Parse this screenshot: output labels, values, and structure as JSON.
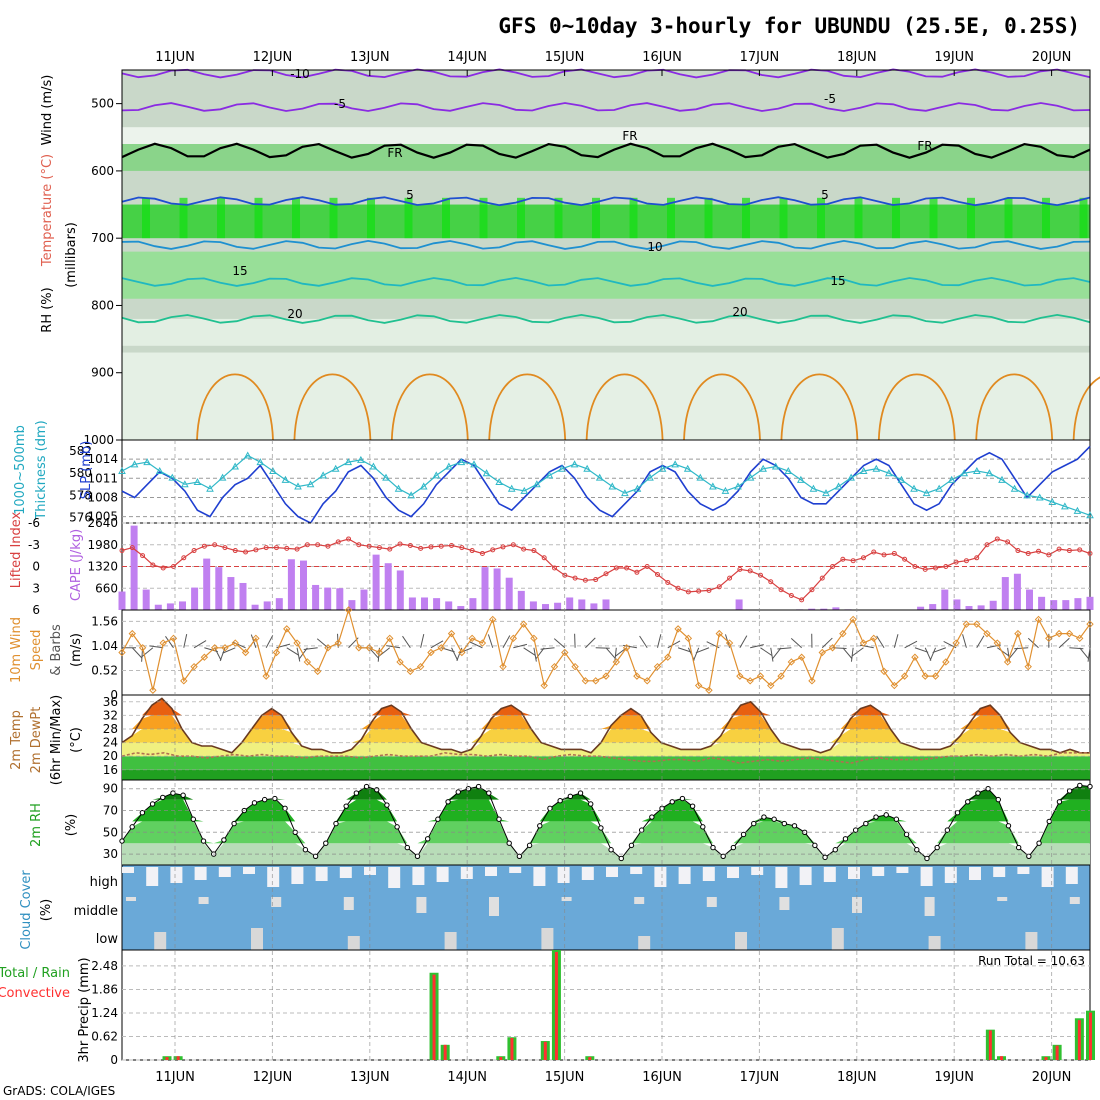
{
  "title": "GFS 0~10day 3-hourly for UBUNDU (25.5E, 0.25S)",
  "credit": "GrADS: COLA/IGES",
  "days": [
    "11JUN",
    "12JUN",
    "13JUN",
    "14JUN",
    "15JUN",
    "16JUN",
    "17JUN",
    "18JUN",
    "19JUN",
    "20JUN"
  ],
  "colors": {
    "humid": "#7ed67e",
    "cape": "#c080f0",
    "rain": "#ff3030",
    "total": "#30c030",
    "cloud": "#6aa9d8",
    "slp": "#1f3fd0",
    "thick": "#30b8c8",
    "li": "#d84040",
    "wind": "#e09030",
    "temp": "#b07050"
  },
  "panel_labels": {
    "upper": [
      "RH (%)",
      "Temperature (°C)",
      "Wind (m/s)",
      "(millibars)"
    ],
    "slp": [
      "1000~500mb",
      "Thickness (dm)",
      "SLP (mb)"
    ],
    "cape": [
      "Lifted Index",
      "CAPE (J/kg)"
    ],
    "wind": [
      "10m Wind",
      "Speed",
      "& Barbs",
      "(m/s)"
    ],
    "temp": [
      "2m Temp",
      "2m DewPt",
      "(6hr Min/Max)",
      "(°C)"
    ],
    "rh": [
      "2m RH",
      "(%)"
    ],
    "cloud": [
      "Cloud Cover",
      "(%)",
      "high",
      "middle",
      "low"
    ],
    "precip": [
      "Total / Rain",
      "Convective",
      "3hr Precip (mm)"
    ]
  },
  "run_total_label": "Run Total = 10.63",
  "chart_data": [
    {
      "type": "heatmap",
      "name": "upper-air cross-section",
      "y_ticks": [
        500,
        600,
        700,
        800,
        900,
        1000
      ],
      "ylim": [
        1000,
        450
      ],
      "isotherm_labels": [
        "-10",
        "-5",
        "-5",
        "FR",
        "FR",
        "FR",
        "5",
        "5",
        "10",
        "15",
        "15",
        "20",
        "20"
      ],
      "isotherms": [
        {
          "label": "-10",
          "level": 455,
          "color": "#8a2be2"
        },
        {
          "label": "-5",
          "level": 505,
          "color": "#8a2be2"
        },
        {
          "label": "FR",
          "level": 570,
          "color": "#000000"
        },
        {
          "label": "5",
          "level": 645,
          "color": "#1f4fd0"
        },
        {
          "label": "10",
          "level": 710,
          "color": "#1e90d0"
        },
        {
          "label": "15",
          "level": 765,
          "color": "#20b8c0"
        },
        {
          "label": "20",
          "level": 820,
          "color": "#20c090"
        }
      ]
    },
    {
      "type": "line",
      "name": "thickness-slp",
      "y_left_ticks": [
        576,
        578,
        580,
        582
      ],
      "y_right_ticks": [
        1005,
        1008,
        1011,
        1014
      ],
      "ylim_left": [
        575.5,
        583
      ],
      "ylim_right": [
        1004,
        1017
      ],
      "series": [
        {
          "name": "SLP",
          "axis": "right",
          "values": [
            1009,
            1008,
            1010,
            1012,
            1011,
            1009,
            1006,
            1005,
            1008,
            1010,
            1011,
            1013,
            1010,
            1007,
            1005,
            1004,
            1007,
            1009,
            1012,
            1013,
            1011,
            1008,
            1006,
            1005,
            1007,
            1010,
            1012,
            1014,
            1013,
            1010,
            1007,
            1006,
            1008,
            1010,
            1012,
            1013,
            1011,
            1008,
            1006,
            1005,
            1007,
            1009,
            1012,
            1013,
            1012,
            1009,
            1007,
            1006,
            1007,
            1009,
            1012,
            1014,
            1013,
            1011,
            1008,
            1007,
            1007,
            1009,
            1011,
            1013,
            1014,
            1013,
            1010,
            1007,
            1006,
            1007,
            1010,
            1012,
            1014,
            1015,
            1014,
            1011,
            1008,
            1010,
            1012,
            1013,
            1014,
            1016
          ]
        },
        {
          "name": "Thickness",
          "axis": "left",
          "values": [
            580.2,
            580.8,
            581.0,
            580.2,
            579.6,
            579.0,
            579.2,
            578.6,
            579.6,
            580.6,
            581.6,
            581.0,
            580.2,
            579.4,
            578.8,
            579.0,
            579.8,
            580.4,
            581.0,
            581.2,
            580.6,
            579.6,
            578.6,
            578.0,
            578.8,
            579.8,
            580.6,
            581.0,
            580.8,
            580.0,
            579.2,
            578.6,
            578.4,
            579.0,
            579.8,
            580.4,
            580.8,
            580.4,
            579.6,
            578.8,
            578.2,
            578.6,
            579.6,
            580.4,
            580.8,
            580.4,
            579.6,
            578.8,
            578.4,
            578.8,
            579.6,
            580.4,
            580.6,
            580.2,
            579.4,
            578.6,
            578.2,
            578.8,
            579.6,
            580.2,
            580.4,
            580.0,
            579.4,
            578.6,
            578.2,
            578.6,
            579.4,
            580.0,
            580.2,
            580.0,
            579.4,
            578.6,
            578.0,
            577.8,
            577.4,
            577.0,
            576.6,
            576.2
          ]
        }
      ]
    },
    {
      "type": "bar",
      "name": "cape-lifted-index",
      "y_left_ticks": [
        6,
        3,
        0,
        -3,
        -6
      ],
      "y_right_ticks": [
        660,
        1320,
        1980,
        2640
      ],
      "ylim_right": [
        0,
        2640
      ],
      "series": [
        {
          "name": "CAPE",
          "values": [
            560,
            2560,
            620,
            160,
            200,
            260,
            680,
            1560,
            1300,
            1000,
            820,
            160,
            260,
            360,
            1540,
            1500,
            760,
            680,
            660,
            300,
            620,
            1680,
            1420,
            1200,
            380,
            380,
            360,
            260,
            120,
            360,
            1300,
            1260,
            980,
            580,
            260,
            180,
            220,
            380,
            320,
            200,
            320,
            0,
            0,
            0,
            0,
            0,
            0,
            0,
            0,
            0,
            0,
            320,
            0,
            0,
            0,
            0,
            20,
            40,
            40,
            80,
            20,
            0,
            0,
            0,
            0,
            0,
            100,
            180,
            620,
            320,
            120,
            140,
            280,
            1000,
            1100,
            620,
            400,
            300,
            300,
            360,
            400
          ]
        },
        {
          "name": "Lifted Index",
          "values": [
            -2.2,
            -2.6,
            -1.5,
            -0.2,
            0.2,
            0.0,
            -1.2,
            -2.2,
            -2.8,
            -3.0,
            -2.6,
            -2.2,
            -2.0,
            -2.3,
            -2.6,
            -2.6,
            -2.5,
            -2.4,
            -3.0,
            -3.0,
            -2.8,
            -3.4,
            -3.8,
            -3.0,
            -2.8,
            -2.6,
            -2.4,
            -3.1,
            -2.9,
            -2.5,
            -2.7,
            -2.8,
            -2.9,
            -2.6,
            -2.2,
            -1.8,
            -2.3,
            -2.7,
            -3.0,
            -2.4,
            -2.2,
            -1.2,
            0.2,
            1.2,
            1.6,
            1.9,
            1.8,
            1.0,
            0.2,
            0.2,
            0.8,
            0.0,
            1.1,
            2.2,
            3.0,
            3.5,
            3.4,
            3.3,
            2.8,
            1.6,
            0.4,
            0.6,
            1.2,
            2.1,
            3.2,
            4.0,
            4.6,
            3.2,
            1.6,
            0.0,
            -1.0,
            -0.8,
            -1.2,
            -2.0,
            -1.6,
            -1.8,
            -1.0,
            0.0,
            0.4,
            0.2,
            0.0,
            -0.6,
            -0.8,
            -1.2,
            -3.0,
            -3.8,
            -3.4,
            -2.2,
            -1.8,
            -2.1,
            -1.6,
            -2.4,
            -2.2,
            -2.3,
            -1.8
          ]
        }
      ]
    },
    {
      "type": "line",
      "name": "10m-wind",
      "y_ticks": [
        0,
        0.52,
        1.04,
        1.56
      ],
      "ylim": [
        0,
        1.8
      ],
      "series": [
        {
          "name": "Speed",
          "values": [
            0.9,
            1.3,
            1.0,
            0.1,
            1.1,
            1.2,
            0.3,
            0.6,
            0.8,
            1.0,
            1.0,
            1.1,
            0.9,
            1.2,
            0.4,
            0.9,
            1.4,
            1.1,
            0.7,
            0.5,
            1.0,
            1.1,
            1.8,
            1.0,
            1.0,
            0.9,
            1.2,
            0.7,
            0.5,
            0.6,
            0.9,
            1.0,
            1.3,
            0.9,
            1.2,
            1.1,
            1.6,
            0.6,
            1.2,
            1.5,
            1.2,
            0.2,
            0.6,
            0.9,
            0.6,
            0.3,
            0.3,
            0.4,
            0.7,
            1.0,
            0.4,
            0.3,
            0.6,
            0.8,
            1.4,
            1.2,
            0.2,
            0.1,
            1.3,
            1.1,
            0.4,
            0.3,
            0.4,
            0.2,
            0.4,
            0.7,
            0.8,
            0.3,
            0.9,
            1.0,
            1.3,
            1.6,
            1.1,
            1.2,
            0.5,
            0.2,
            0.4,
            0.8,
            0.4,
            0.4,
            0.7,
            1.1,
            1.5,
            1.5,
            1.3,
            1.1,
            0.7,
            1.3,
            0.6,
            1.6,
            1.2,
            1.3,
            1.3,
            1.2,
            1.5
          ]
        }
      ]
    },
    {
      "type": "area",
      "name": "2m-temp-dewpoint",
      "y_ticks": [
        16,
        20,
        24,
        28,
        32,
        36
      ],
      "ylim": [
        13,
        38
      ],
      "series": [
        {
          "name": "2m Temp",
          "values": [
            24,
            26,
            31,
            35,
            37,
            34,
            28,
            24,
            23,
            23,
            22,
            21,
            24,
            28,
            32,
            34,
            32,
            27,
            23,
            22,
            22,
            21,
            21,
            22,
            25,
            30,
            34,
            35,
            33,
            28,
            24,
            23,
            22,
            22,
            21,
            22,
            26,
            31,
            34,
            35,
            33,
            28,
            24,
            23,
            22,
            22,
            22,
            21,
            24,
            29,
            32,
            34,
            32,
            27,
            24,
            23,
            22,
            22,
            22,
            23,
            26,
            31,
            35,
            36,
            33,
            28,
            24,
            23,
            22,
            22,
            21,
            22,
            26,
            31,
            34,
            35,
            33,
            28,
            24,
            23,
            22,
            22,
            22,
            23,
            26,
            30,
            34,
            35,
            32,
            27,
            24,
            23,
            22,
            22,
            21,
            22,
            21,
            21
          ]
        },
        {
          "name": "2m DewPt",
          "values": [
            20,
            21,
            20.5,
            21,
            20,
            20,
            19.5,
            20,
            20.5,
            20,
            20.5,
            20,
            20,
            19.5,
            20,
            20,
            20,
            19.5,
            20,
            20.5,
            20,
            20,
            20,
            21,
            20.5,
            20.5,
            20,
            20.5,
            20,
            20,
            19,
            20,
            20.5,
            20,
            20,
            19.5,
            19,
            18.5,
            18.5,
            19,
            19,
            18.5,
            19.5,
            19,
            18,
            18.5,
            19,
            18.5,
            19,
            19.5,
            19,
            18.5,
            18,
            19,
            19.5,
            19,
            19,
            19,
            19.5,
            20,
            20,
            20.5,
            20,
            20.5,
            20,
            20.5,
            20,
            21,
            21,
            21
          ]
        }
      ]
    },
    {
      "type": "area",
      "name": "2m-rh",
      "y_ticks": [
        30,
        50,
        70,
        90
      ],
      "ylim": [
        20,
        98
      ],
      "series": [
        {
          "name": "2m RH",
          "values": [
            42,
            55,
            68,
            76,
            82,
            86,
            84,
            62,
            42,
            30,
            43,
            58,
            70,
            77,
            80,
            81,
            72,
            50,
            34,
            28,
            40,
            58,
            74,
            86,
            92,
            89,
            75,
            55,
            36,
            28,
            44,
            62,
            78,
            87,
            90,
            92,
            86,
            62,
            40,
            28,
            38,
            56,
            72,
            79,
            83,
            86,
            76,
            54,
            34,
            26,
            38,
            52,
            64,
            72,
            78,
            81,
            74,
            55,
            36,
            28,
            36,
            48,
            58,
            64,
            62,
            58,
            56,
            50,
            38,
            27,
            34,
            44,
            52,
            58,
            64,
            66,
            62,
            48,
            34,
            26,
            36,
            52,
            68,
            78,
            86,
            90,
            80,
            56,
            36,
            28,
            40,
            60,
            78,
            88,
            93,
            92
          ]
        }
      ]
    },
    {
      "type": "bar",
      "name": "cloud-cover",
      "categories": [
        "high",
        "middle",
        "low"
      ]
    },
    {
      "type": "bar",
      "name": "3hr-precip",
      "y_ticks": [
        0,
        0.62,
        1.24,
        1.86,
        2.48
      ],
      "ylim": [
        0,
        2.9
      ],
      "run_total": 10.63,
      "series": [
        {
          "name": "Total",
          "values": [
            0,
            0,
            0,
            0,
            0.1,
            0.1,
            0,
            0,
            0,
            0,
            0,
            0,
            0,
            0,
            0,
            0,
            0,
            0,
            0,
            0,
            0,
            0,
            0,
            0,
            0,
            0,
            0,
            0,
            2.3,
            0.4,
            0,
            0,
            0,
            0,
            0.1,
            0.6,
            0,
            0,
            0.5,
            2.9,
            0,
            0,
            0.1,
            0,
            0,
            0,
            0,
            0,
            0,
            0,
            0,
            0,
            0,
            0,
            0,
            0,
            0,
            0,
            0,
            0,
            0,
            0,
            0,
            0,
            0,
            0,
            0,
            0,
            0,
            0,
            0,
            0,
            0,
            0,
            0,
            0,
            0,
            0,
            0.8,
            0.1,
            0,
            0,
            0,
            0.1,
            0.4,
            0,
            1.1,
            1.3
          ]
        },
        {
          "name": "Convective",
          "values": [
            0,
            0,
            0,
            0,
            0.08,
            0.1,
            0,
            0,
            0,
            0,
            0,
            0,
            0,
            0,
            0,
            0,
            0,
            0,
            0,
            0,
            0,
            0,
            0,
            0,
            0,
            0,
            0,
            0,
            2.25,
            0.4,
            0,
            0,
            0,
            0,
            0.08,
            0.58,
            0,
            0,
            0.48,
            2.85,
            0,
            0,
            0.08,
            0,
            0,
            0,
            0,
            0,
            0,
            0,
            0,
            0,
            0,
            0,
            0,
            0,
            0,
            0,
            0,
            0,
            0,
            0,
            0,
            0,
            0,
            0,
            0,
            0,
            0,
            0,
            0,
            0,
            0,
            0,
            0,
            0,
            0,
            0,
            0.78,
            0.1,
            0,
            0,
            0,
            0.08,
            0.38,
            0,
            1.05,
            1.25
          ]
        }
      ]
    }
  ]
}
